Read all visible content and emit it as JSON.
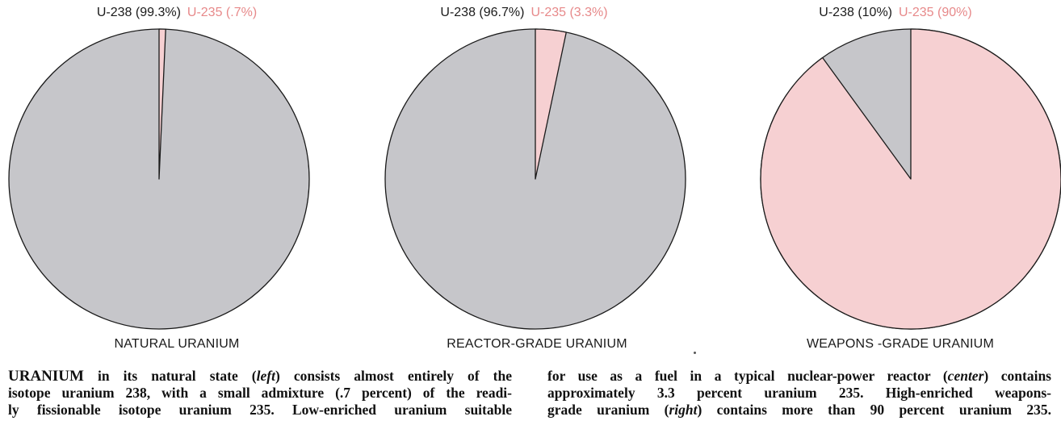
{
  "colors": {
    "u238": "#c6c6ca",
    "u235": "#f6d0d2",
    "u235_text": "#e7898a",
    "outline": "#1a1a1a"
  },
  "chart_data": [
    {
      "type": "pie",
      "title": "NATURAL URANIUM",
      "legend": {
        "u238": "U-238 (99.3%)",
        "u235": "U-235 (.7%)"
      },
      "slices": [
        {
          "label": "U-238",
          "value": 99.3
        },
        {
          "label": "U-235",
          "value": 0.7
        }
      ]
    },
    {
      "type": "pie",
      "title": "REACTOR-GRADE URANIUM",
      "legend": {
        "u238": "U-238 (96.7%)",
        "u235": "U-235 (3.3%)"
      },
      "slices": [
        {
          "label": "U-238",
          "value": 96.7
        },
        {
          "label": "U-235",
          "value": 3.3
        }
      ]
    },
    {
      "type": "pie",
      "title": "WEAPONS -GRADE URANIUM",
      "legend": {
        "u238": "U-238 (10%)",
        "u235": "U-235 (90%)"
      },
      "slices": [
        {
          "label": "U-238",
          "value": 10
        },
        {
          "label": "U-235",
          "value": 90
        }
      ]
    }
  ],
  "caption": {
    "left": [
      [
        "URANIUM",
        " in its natural state (",
        "left",
        ") consists almost entirely of the"
      ],
      [
        "isotope uranium 238, with a small admixture (.7 percent) of the readi-"
      ],
      [
        "ly fissionable isotope uranium 235. Low-enriched uranium suitable"
      ]
    ],
    "right": [
      [
        "for use as a fuel in a typical nuclear-power reactor (",
        "center",
        ") contains"
      ],
      [
        "approximately 3.3 percent uranium 235. High-enriched weapons-"
      ],
      [
        "grade uranium (",
        "right",
        ") contains more than 90 percent uranium 235."
      ]
    ]
  }
}
